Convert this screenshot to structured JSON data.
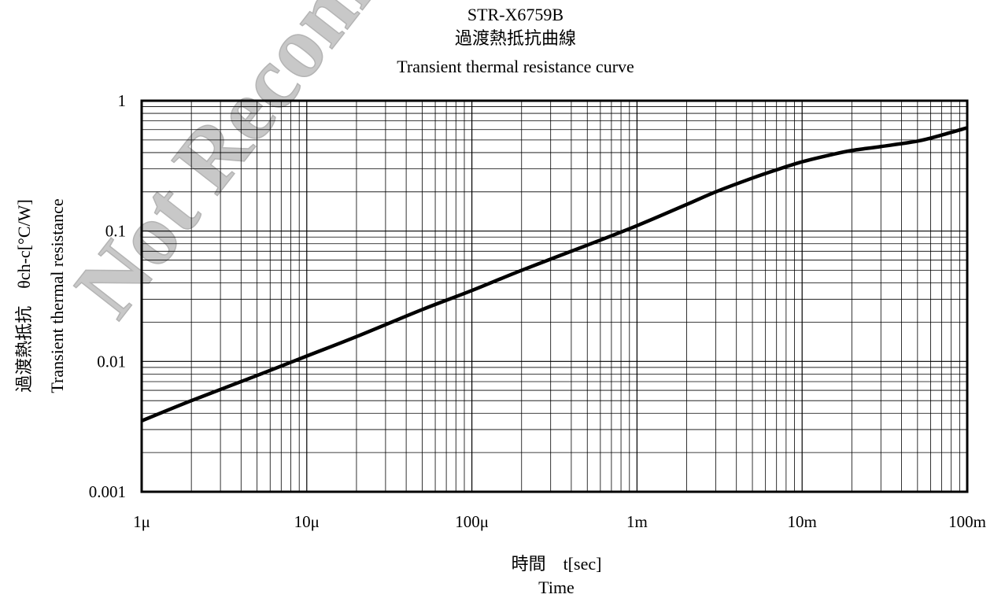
{
  "chart_data": {
    "type": "line",
    "title_lines": [
      "STR-X6759B",
      "過渡熱抵抗曲線",
      "Transient thermal resistance curve"
    ],
    "watermark": "Not Recommended",
    "xlabel_lines": [
      "時間　t[sec]",
      "Time"
    ],
    "ylabel_lines": [
      "過渡熱抵抗　θch-c[°C/W]",
      "Transient thermal resistance"
    ],
    "x_scale": "log",
    "y_scale": "log",
    "xlim": [
      1e-06,
      0.1
    ],
    "ylim": [
      0.001,
      1
    ],
    "x_ticks": [
      {
        "value": 1e-06,
        "label": "1μ"
      },
      {
        "value": 1e-05,
        "label": "10μ"
      },
      {
        "value": 0.0001,
        "label": "100μ"
      },
      {
        "value": 0.001,
        "label": "1m"
      },
      {
        "value": 0.01,
        "label": "10m"
      },
      {
        "value": 0.1,
        "label": "100m"
      }
    ],
    "y_ticks": [
      {
        "value": 0.001,
        "label": "0.001"
      },
      {
        "value": 0.01,
        "label": "0.01"
      },
      {
        "value": 0.1,
        "label": "0.1"
      },
      {
        "value": 1,
        "label": "1"
      }
    ],
    "grid": true,
    "legend": "none",
    "line_color": "#000000",
    "series": [
      {
        "x": [
          1e-06,
          2e-06,
          5e-06,
          1e-05,
          2e-05,
          5e-05,
          0.0001,
          0.0002,
          0.0005,
          0.001,
          0.002,
          0.003,
          0.005,
          0.007,
          0.01,
          0.015,
          0.02,
          0.03,
          0.05,
          0.07,
          0.1
        ],
        "y": [
          0.0035,
          0.005,
          0.0078,
          0.011,
          0.0155,
          0.025,
          0.035,
          0.05,
          0.078,
          0.11,
          0.16,
          0.2,
          0.255,
          0.295,
          0.34,
          0.385,
          0.415,
          0.445,
          0.49,
          0.545,
          0.62
        ]
      }
    ]
  }
}
